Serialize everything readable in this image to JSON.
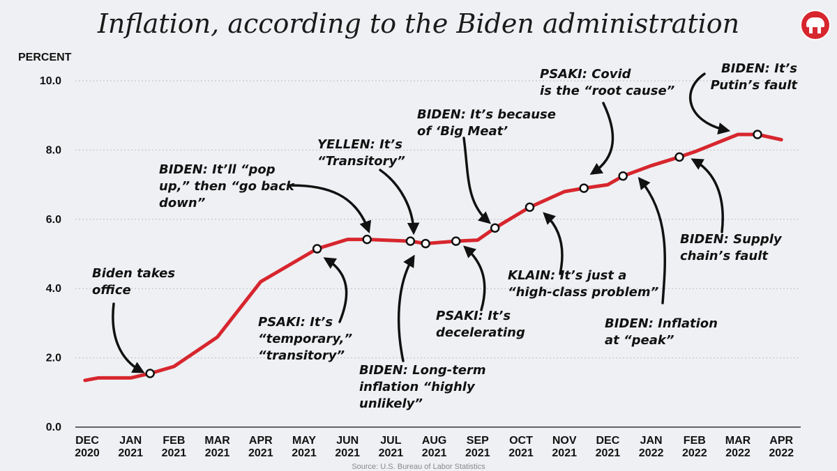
{
  "chart_data": {
    "type": "line",
    "title": "Inflation, according to the Biden administration",
    "ylabel": "PERCENT",
    "ylim": [
      0,
      10
    ],
    "yticks": [
      "0.0",
      "2.0",
      "4.0",
      "6.0",
      "8.0",
      "10.0"
    ],
    "grid": true,
    "x_categories": [
      [
        "DEC",
        "2020"
      ],
      [
        "JAN",
        "2021"
      ],
      [
        "FEB",
        "2021"
      ],
      [
        "MAR",
        "2021"
      ],
      [
        "APR",
        "2021"
      ],
      [
        "MAY",
        "2021"
      ],
      [
        "JUN",
        "2021"
      ],
      [
        "JUL",
        "2021"
      ],
      [
        "AUG",
        "2021"
      ],
      [
        "SEP",
        "2021"
      ],
      [
        "OCT",
        "2021"
      ],
      [
        "NOV",
        "2021"
      ],
      [
        "DEC",
        "2021"
      ],
      [
        "JAN",
        "2022"
      ],
      [
        "FEB",
        "2022"
      ],
      [
        "MAR",
        "2022"
      ],
      [
        "APR",
        "2022"
      ]
    ],
    "series": [
      {
        "color": "#d7262e",
        "points": [
          {
            "x": -0.05,
            "y": 1.35
          },
          {
            "x": 0.25,
            "y": 1.42
          },
          {
            "x": 1.0,
            "y": 1.42
          },
          {
            "x": 1.45,
            "y": 1.55
          },
          {
            "x": 2.0,
            "y": 1.75
          },
          {
            "x": 3.0,
            "y": 2.6
          },
          {
            "x": 4.0,
            "y": 4.2
          },
          {
            "x": 5.3,
            "y": 5.15
          },
          {
            "x": 6.0,
            "y": 5.42
          },
          {
            "x": 6.45,
            "y": 5.42
          },
          {
            "x": 7.45,
            "y": 5.37
          },
          {
            "x": 7.8,
            "y": 5.3
          },
          {
            "x": 8.5,
            "y": 5.37
          },
          {
            "x": 9.0,
            "y": 5.4
          },
          {
            "x": 9.4,
            "y": 5.75
          },
          {
            "x": 10.2,
            "y": 6.35
          },
          {
            "x": 11.0,
            "y": 6.8
          },
          {
            "x": 11.45,
            "y": 6.9
          },
          {
            "x": 12.0,
            "y": 7.0
          },
          {
            "x": 12.35,
            "y": 7.25
          },
          {
            "x": 13.0,
            "y": 7.55
          },
          {
            "x": 13.65,
            "y": 7.8
          },
          {
            "x": 14.0,
            "y": 7.95
          },
          {
            "x": 15.0,
            "y": 8.45
          },
          {
            "x": 15.45,
            "y": 8.45
          },
          {
            "x": 16.0,
            "y": 8.3
          }
        ]
      }
    ],
    "markers": [
      {
        "x": 1.45,
        "y": 1.55
      },
      {
        "x": 5.3,
        "y": 5.15
      },
      {
        "x": 6.45,
        "y": 5.42
      },
      {
        "x": 7.45,
        "y": 5.37
      },
      {
        "x": 7.8,
        "y": 5.3
      },
      {
        "x": 8.5,
        "y": 5.37
      },
      {
        "x": 9.4,
        "y": 5.75
      },
      {
        "x": 10.2,
        "y": 6.35
      },
      {
        "x": 11.45,
        "y": 6.9
      },
      {
        "x": 12.35,
        "y": 7.25
      },
      {
        "x": 13.65,
        "y": 7.8
      },
      {
        "x": 15.45,
        "y": 8.45
      }
    ],
    "annotations": [
      {
        "lines": [
          "Biden takes",
          "office"
        ]
      },
      {
        "lines": [
          "PSAKI: It’s",
          "“temporary,”",
          "“transitory”"
        ]
      },
      {
        "lines": [
          "BIDEN: It’ll “pop",
          "up,” then “go back",
          "down”"
        ]
      },
      {
        "lines": [
          "YELLEN: It’s",
          "“Transitory”"
        ]
      },
      {
        "lines": [
          "BIDEN: Long-term",
          "inflation “highly",
          "unlikely”"
        ]
      },
      {
        "lines": [
          "PSAKI: It’s",
          "decelerating"
        ]
      },
      {
        "lines": [
          "BIDEN: It’s because",
          "of ‘Big Meat’"
        ]
      },
      {
        "lines": [
          "KLAIN: It’s just a",
          "“high-class problem”"
        ]
      },
      {
        "lines": [
          "PSAKI: Covid",
          "is the “root cause”"
        ]
      },
      {
        "lines": [
          "BIDEN: Inflation",
          "at “peak”"
        ]
      },
      {
        "lines": [
          "BIDEN: Supply",
          "chain’s fault"
        ]
      },
      {
        "lines": [
          "BIDEN: It’s",
          "Putin’s fault"
        ]
      }
    ],
    "source": "Source: U.S. Bureau of Labor Statistics"
  },
  "logo": {
    "icon": "republican-elephant-icon",
    "color": "#d7262e"
  }
}
